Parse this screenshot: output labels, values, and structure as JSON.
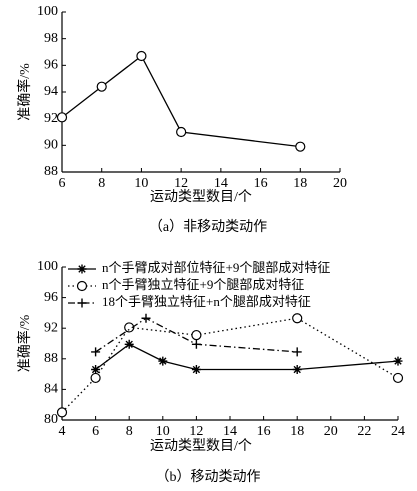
{
  "chart_data": [
    {
      "type": "line",
      "xlabel": "运动类型数目/个",
      "ylabel": "准确率/%",
      "caption": "（a）非移动类动作",
      "x": [
        6,
        8,
        10,
        12,
        18
      ],
      "values": [
        92.1,
        94.4,
        96.7,
        91.0,
        89.9
      ],
      "marker": "circle",
      "color": "#000000",
      "xlim": [
        6,
        20
      ],
      "xticks": [
        6,
        8,
        10,
        12,
        14,
        16,
        18,
        20
      ],
      "ylim": [
        88,
        100
      ],
      "yticks": [
        88,
        90,
        92,
        94,
        96,
        98,
        100
      ]
    },
    {
      "type": "line",
      "xlabel": "运动类型数目/个",
      "ylabel": "准确率/%",
      "caption": "（b）移动类动作",
      "series": [
        {
          "name": "n个手臂成对部位特征+9个腿部成对特征",
          "color": "#000000",
          "marker": "star",
          "dash": "none",
          "x": [
            6,
            8,
            10,
            12,
            18,
            24
          ],
          "values": [
            86.6,
            89.9,
            87.7,
            86.6,
            86.6,
            87.7
          ]
        },
        {
          "name": "n个手臂独立特征+9个腿部成对特征",
          "color": "#000000",
          "marker": "circle",
          "dash": "1.5,3",
          "x": [
            4,
            6,
            8,
            12,
            18,
            24
          ],
          "values": [
            81.0,
            85.5,
            92.1,
            91.1,
            93.3,
            85.5
          ]
        },
        {
          "name": "18个手臂独立特征+n个腿部成对特征",
          "color": "#000000",
          "marker": "plus",
          "dash": "7,3,1.5,3",
          "x": [
            6,
            9,
            12,
            18
          ],
          "values": [
            88.9,
            93.3,
            89.9,
            88.9
          ]
        }
      ],
      "xlim": [
        4,
        24
      ],
      "xticks": [
        4,
        6,
        8,
        10,
        12,
        14,
        16,
        18,
        20,
        22,
        24
      ],
      "ylim": [
        80,
        100
      ],
      "yticks": [
        80,
        84,
        88,
        92,
        96,
        100
      ]
    }
  ]
}
